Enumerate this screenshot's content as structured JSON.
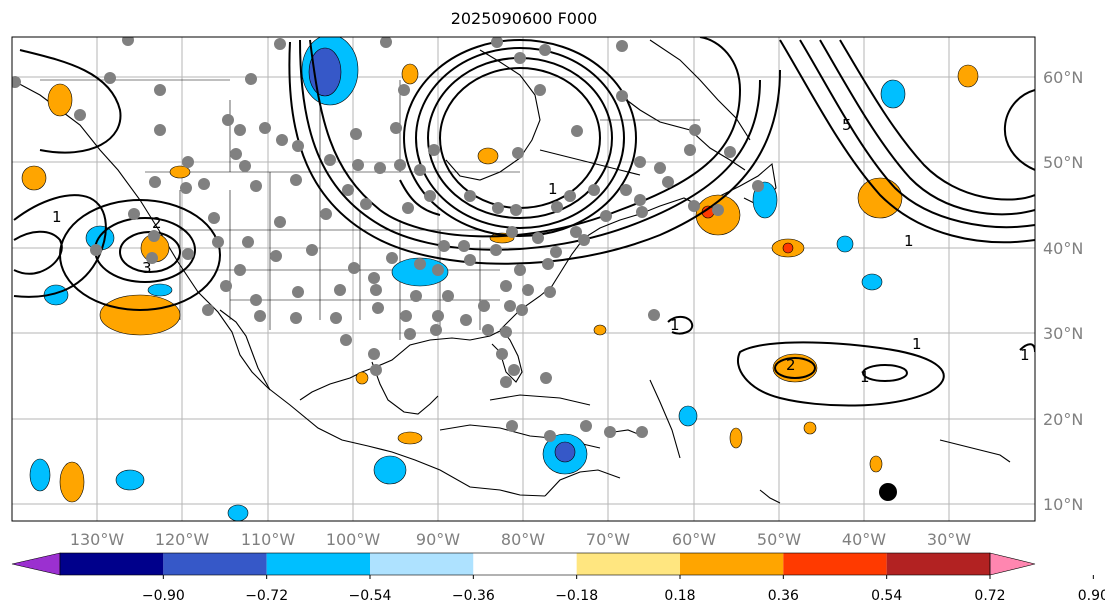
{
  "title": "2025090600 F000",
  "longitude_labels": [
    "130°W",
    "120°W",
    "110°W",
    "100°W",
    "90°W",
    "80°W",
    "70°W",
    "60°W",
    "50°W",
    "40°W",
    "30°W"
  ],
  "latitude_labels": [
    "60°N",
    "50°N",
    "40°N",
    "30°N",
    "20°N",
    "10°N"
  ],
  "colorbar": {
    "ticks": [
      "−0.90",
      "−0.72",
      "−0.54",
      "−0.36",
      "−0.18",
      "0.18",
      "0.36",
      "0.54",
      "0.72",
      "0.90"
    ],
    "colors": [
      "#9b30d0",
      "#00008b",
      "#3658c8",
      "#00bfff",
      "#aee2ff",
      "#ffffff",
      "#ffe680",
      "#ffa500",
      "#ff3a00",
      "#b22222",
      "#ff86b0"
    ]
  },
  "contour_labels": [
    "1",
    "2",
    "3",
    "1",
    "5",
    "1",
    "1",
    "1",
    "2",
    "1",
    "1"
  ],
  "point_marker": {
    "description_icon": "black-dot-icon"
  }
}
